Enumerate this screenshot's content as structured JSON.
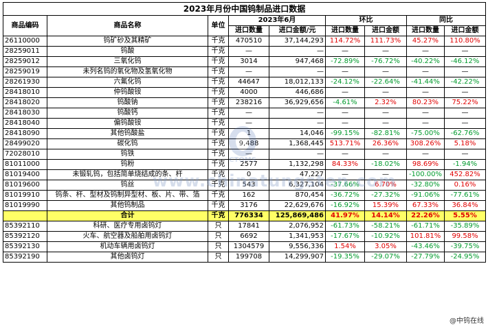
{
  "title": "2023年月份中国钨制品进口数据",
  "header": {
    "code": "商品编码",
    "name": "商品名称",
    "unit": "单位",
    "period": "2023年6月",
    "mom": "环比",
    "yoy": "同比",
    "qty": "进口数量",
    "amount": "进口金额/元",
    "mom_qty": "进口数量",
    "mom_amt": "进口金额",
    "yoy_qty": "进口数量",
    "yoy_amt": "进口金额"
  },
  "rows": [
    {
      "code": "26110000",
      "name": "钨矿砂及其精矿",
      "unit": "千克",
      "qty": "470510",
      "amt": "37,144,293",
      "mq": "114.72%",
      "ma": "111.73%",
      "yq": "45.27%",
      "ya": "110.80%"
    },
    {
      "code": "28259011",
      "name": "钨酸",
      "unit": "千克",
      "qty": "—",
      "amt": "—",
      "mq": "—",
      "ma": "—",
      "yq": "—",
      "ya": "—"
    },
    {
      "code": "28259012",
      "name": "三氧化钨",
      "unit": "千克",
      "qty": "3014",
      "amt": "947,468",
      "mq": "-72.89%",
      "ma": "-76.72%",
      "yq": "-40.22%",
      "ya": "-46.12%"
    },
    {
      "code": "28259019",
      "name": "未列名钨的氧化物及氢氧化物",
      "unit": "千克",
      "qty": "—",
      "amt": "—",
      "mq": "—",
      "ma": "—",
      "yq": "—",
      "ya": "—"
    },
    {
      "code": "28261930",
      "name": "六氟化钨",
      "unit": "千克",
      "qty": "44647",
      "amt": "18,012,133",
      "mq": "-24.12%",
      "ma": "-22.64%",
      "yq": "-41.44%",
      "ya": "-42.22%"
    },
    {
      "code": "28418010",
      "name": "仲钨酸铵",
      "unit": "千克",
      "qty": "4000",
      "amt": "446,686",
      "mq": "—",
      "ma": "—",
      "yq": "—",
      "ya": "—"
    },
    {
      "code": "28418020",
      "name": "钨酸钠",
      "unit": "千克",
      "qty": "238216",
      "amt": "36,929,656",
      "mq": "-4.61%",
      "ma": "2.32%",
      "yq": "80.23%",
      "ya": "75.22%"
    },
    {
      "code": "28418030",
      "name": "钨酸钙",
      "unit": "千克",
      "qty": "—",
      "amt": "—",
      "mq": "—",
      "ma": "—",
      "yq": "—",
      "ya": "—"
    },
    {
      "code": "28418040",
      "name": "偏钨酸铵",
      "unit": "千克",
      "qty": "—",
      "amt": "—",
      "mq": "—",
      "ma": "—",
      "yq": "—",
      "ya": "—"
    },
    {
      "code": "28418090",
      "name": "其他钨酸盐",
      "unit": "千克",
      "qty": "1",
      "amt": "14,046",
      "mq": "-99.15%",
      "ma": "-82.81%",
      "yq": "-75.00%",
      "ya": "-62.76%"
    },
    {
      "code": "28499020",
      "name": "碳化钨",
      "unit": "千克",
      "qty": "9,488",
      "amt": "1,368,445",
      "mq": "513.71%",
      "ma": "26.36%",
      "yq": "308.26%",
      "ya": "5.18%"
    },
    {
      "code": "72028010",
      "name": "钨铁",
      "unit": "千克",
      "qty": "—",
      "amt": "—",
      "mq": "—",
      "ma": "—",
      "yq": "—",
      "ya": "—"
    },
    {
      "code": "81011000",
      "name": "钨粉",
      "unit": "千克",
      "qty": "2577",
      "amt": "1,132,298",
      "mq": "84.33%",
      "ma": "-18.02%",
      "yq": "98.69%",
      "ya": "-1.94%"
    },
    {
      "code": "81019400",
      "name": "未锻轧钨，包括简单烧结成的条、杆",
      "unit": "千克",
      "qty": "0",
      "amt": "47,227",
      "mq": "—",
      "ma": "—",
      "yq": "-100.00%",
      "ya": "452.82%"
    },
    {
      "code": "81019600",
      "name": "钨丝",
      "unit": "千克",
      "qty": "543",
      "amt": "6,327,104",
      "mq": "-37.66%",
      "ma": "6.70%",
      "yq": "-32.80%",
      "ya": "0.16%"
    },
    {
      "code": "81019910",
      "name": "钨条、杆、型材及钨制异型材、板、片、带、箔",
      "unit": "千克",
      "qty": "162",
      "amt": "870,454",
      "mq": "-36.72%",
      "ma": "-27.32%",
      "yq": "-91.06%",
      "ya": "-77.61%"
    },
    {
      "code": "81019990",
      "name": "其他钨制品",
      "unit": "千克",
      "qty": "3176",
      "amt": "22,629,676",
      "mq": "-16.92%",
      "ma": "15.39%",
      "yq": "67.33%",
      "ya": "36.84%"
    },
    {
      "code": "",
      "name": "合计",
      "unit": "千克",
      "qty": "776334",
      "amt": "125,869,486",
      "mq": "41.97%",
      "ma": "14.14%",
      "yq": "22.26%",
      "ya": "5.55%",
      "total": true
    },
    {
      "code": "85392110",
      "name": "科研、医疗专用卤钨灯",
      "unit": "只",
      "qty": "17841",
      "amt": "2,076,952",
      "mq": "-61.73%",
      "ma": "-58.21%",
      "yq": "-61.71%",
      "ya": "-35.89%"
    },
    {
      "code": "85392120",
      "name": "火车、航空器及船舶用卤钨灯",
      "unit": "只",
      "qty": "6692",
      "amt": "1,341,953",
      "mq": "-17.67%",
      "ma": "-10.92%",
      "yq": "101.81%",
      "ya": "99.58%"
    },
    {
      "code": "85392130",
      "name": "机动车辆用卤钨灯",
      "unit": "只",
      "qty": "1304579",
      "amt": "9,556,336",
      "mq": "1.54%",
      "ma": "3.05%",
      "yq": "-43.46%",
      "ya": "-39.75%"
    },
    {
      "code": "85392190",
      "name": "其他卤钨灯",
      "unit": "只",
      "qty": "199708",
      "amt": "14,299,907",
      "mq": "-19.35%",
      "ma": "-29.07%",
      "yq": "-27.79%",
      "ya": "-24.95%"
    }
  ],
  "colors": {
    "positive": "#e00000",
    "negative": "#009a2c",
    "total_bg": "#ffff66"
  },
  "watermark": {
    "text": "www.chinatungsten.com",
    "logo": "CTOMS"
  },
  "source": "@中钨在线"
}
